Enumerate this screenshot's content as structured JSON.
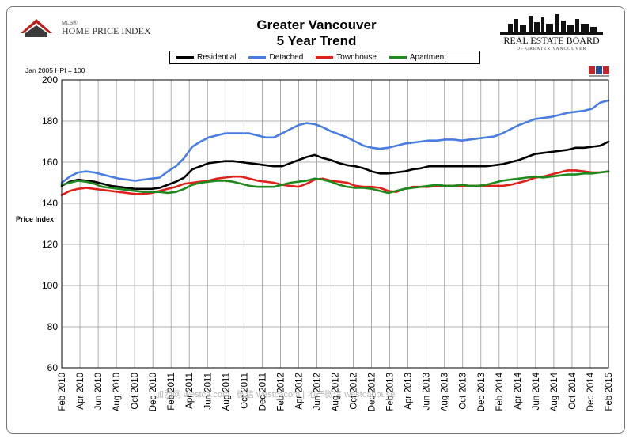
{
  "header": {
    "title_line1": "Greater Vancouver",
    "title_line2": "5 Year Trend",
    "logo_left_small": "MLS®",
    "logo_left_main": "HOME PRICE INDEX",
    "logo_right_main": "REAL ESTATE BOARD",
    "logo_right_sub": "OF GREATER VANCOUVER"
  },
  "notes": {
    "base": "Jan 2005 HPI = 100",
    "watermark": "加西网 westca.com | 微信 westcacom | 地产微信 westcahouse"
  },
  "colors": {
    "residential": "#000000",
    "detached": "#4a7de0",
    "townhouse": "#e0201a",
    "apartment": "#1e8a1e"
  },
  "chart_data": {
    "type": "line",
    "title": "Greater Vancouver 5 Year Trend",
    "xlabel": "",
    "ylabel": "Price Index",
    "ylim": [
      60,
      200
    ],
    "yticks": [
      60,
      80,
      100,
      120,
      140,
      160,
      180,
      200
    ],
    "grid": true,
    "legend": "top-center",
    "x_tick_labels": [
      "Feb 2010",
      "Apr 2010",
      "Jun 2010",
      "Aug 2010",
      "Oct 2010",
      "Dec 2010",
      "Feb 2011",
      "Apr 2011",
      "Jun 2011",
      "Aug 2011",
      "Oct 2011",
      "Dec 2011",
      "Feb 2012",
      "Apr 2012",
      "Jun 2012",
      "Aug 2012",
      "Oct 2012",
      "Dec 2012",
      "Feb 2013",
      "Apr 2013",
      "Jun 2013",
      "Aug 2013",
      "Oct 2013",
      "Dec 2013",
      "Feb 2014",
      "Apr 2014",
      "Jun 2014",
      "Aug 2014",
      "Oct 2014",
      "Dec 2014",
      "Feb 2015"
    ],
    "series": [
      {
        "name": "Residential",
        "values": [
          148.5,
          150.5,
          151.5,
          151,
          150.5,
          149.5,
          148.5,
          148,
          147.5,
          147,
          147,
          147,
          147.5,
          149,
          150.5,
          152.5,
          156.5,
          158,
          159.5,
          160,
          160.5,
          160.5,
          160,
          159.5,
          159,
          158.5,
          158,
          158,
          159.5,
          161,
          162.5,
          163.5,
          162,
          161,
          159.5,
          158.5,
          158,
          157,
          155.5,
          154.5,
          154.5,
          155,
          155.5,
          156.5,
          157,
          158,
          158,
          158,
          158,
          158,
          158,
          158,
          158,
          158.5,
          159,
          160,
          161,
          162.5,
          164,
          164.5,
          165,
          165.5,
          166,
          167,
          167,
          167.5,
          168,
          170
        ]
      },
      {
        "name": "Detached",
        "values": [
          150,
          153,
          155,
          155.5,
          155,
          154,
          153,
          152,
          151.5,
          151,
          151.5,
          152,
          152.5,
          155.5,
          158,
          162,
          167.5,
          170,
          172,
          173,
          174,
          174,
          174,
          174,
          173,
          172,
          172,
          174,
          176,
          178,
          179,
          178.5,
          177,
          175,
          173.5,
          172,
          170,
          168,
          167,
          166.5,
          167,
          168,
          169,
          169.5,
          170,
          170.5,
          170.5,
          171,
          171,
          170.5,
          171,
          171.5,
          172,
          172.5,
          174,
          176,
          178,
          179.5,
          181,
          181.5,
          182,
          183,
          184,
          184.5,
          185,
          186,
          189,
          190
        ]
      },
      {
        "name": "Townhouse",
        "values": [
          144,
          146,
          147,
          147.5,
          147,
          146.5,
          146,
          145.5,
          145,
          144.5,
          144.5,
          145,
          146,
          147,
          148,
          149.5,
          150,
          150.5,
          151,
          152,
          152.5,
          153,
          153,
          152,
          151,
          150.5,
          150,
          149,
          148.5,
          148,
          149.5,
          151.5,
          152,
          151,
          150.5,
          150,
          148.5,
          148,
          148,
          147.5,
          146,
          145.5,
          147,
          148,
          148,
          148,
          148.5,
          148.5,
          148.5,
          148.5,
          148.5,
          148.5,
          148.5,
          148.5,
          148.5,
          149,
          150,
          151,
          152.5,
          153,
          154,
          155,
          156,
          156,
          155.5,
          155,
          155,
          155.5
        ]
      },
      {
        "name": "Apartment",
        "values": [
          149,
          150,
          151,
          150.5,
          149.5,
          148,
          147.5,
          147,
          146.5,
          146,
          145.5,
          145.5,
          145.5,
          145,
          145.5,
          147,
          149,
          150,
          150.5,
          151,
          151,
          150.5,
          149.5,
          148.5,
          148,
          148,
          148,
          149,
          150,
          150.5,
          151,
          152,
          151.5,
          150.5,
          149,
          148,
          147.5,
          147.5,
          147,
          146,
          145,
          146,
          147,
          147.5,
          148,
          148.5,
          149,
          148.5,
          148.5,
          149,
          148.5,
          148.5,
          149,
          150,
          151,
          151.5,
          152,
          152.5,
          153,
          152.5,
          153,
          153.5,
          154,
          154,
          154.5,
          154.5,
          155,
          155.5
        ]
      }
    ]
  }
}
